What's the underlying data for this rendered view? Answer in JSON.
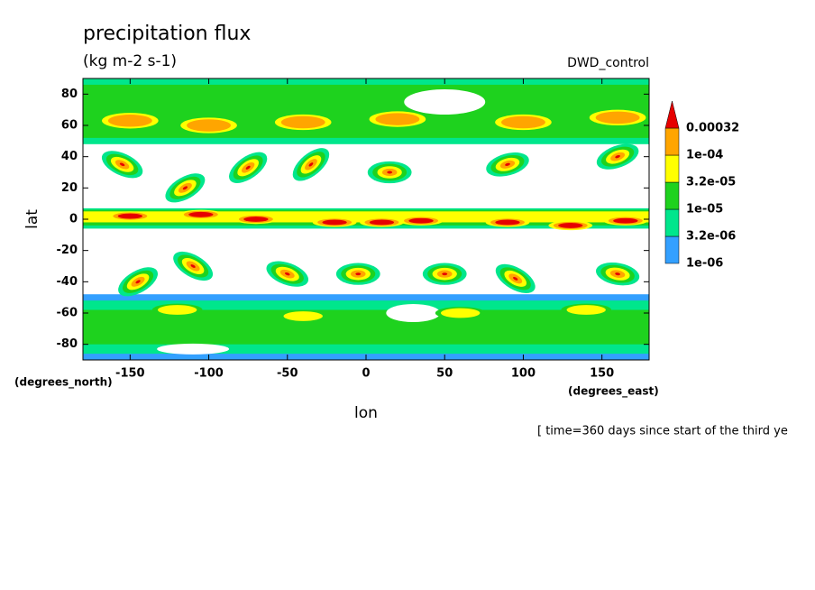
{
  "chart_data": {
    "type": "contour",
    "title": "precipitation flux",
    "subtitle": "(kg m-2 s-1)",
    "experiment": "DWD_control",
    "x_label": "lon",
    "y_label": "lat",
    "x_units": "(degrees_east)",
    "y_units": "(degrees_north)",
    "time_note": "[ time=360 days since start of the third ye",
    "xlim": [
      -180,
      180
    ],
    "xticks": [
      -150,
      -100,
      -50,
      0,
      50,
      100,
      150
    ],
    "ylim": [
      -90,
      90
    ],
    "yticks": [
      -80,
      -60,
      -40,
      -20,
      0,
      20,
      40,
      60,
      80
    ],
    "levels": [
      {
        "value": 1e-06,
        "label": "1e-06"
      },
      {
        "value": 3.2e-06,
        "label": "3.2e-06"
      },
      {
        "value": 1e-05,
        "label": "1e-05"
      },
      {
        "value": 3.2e-05,
        "label": "3.2e-05"
      },
      {
        "value": 0.0001,
        "label": "1e-04"
      },
      0.00032
    ],
    "colors": [
      "#33a0ff",
      "#00e68c",
      "#1ed21e",
      "#ffff00",
      "#ffa500",
      "#e60000"
    ]
  }
}
